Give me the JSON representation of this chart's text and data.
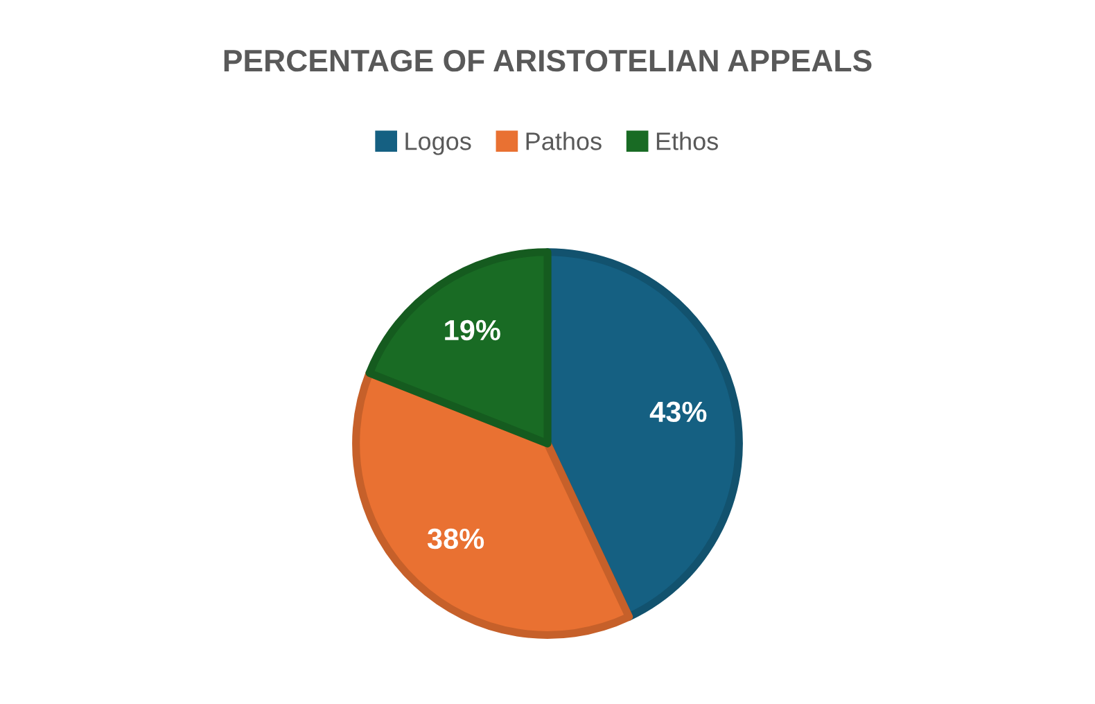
{
  "chart_data": {
    "type": "pie",
    "title": "PERCENTAGE OF ARISTOTELIAN APPEALS",
    "categories": [
      "Logos",
      "Pathos",
      "Ethos"
    ],
    "values": [
      43,
      38,
      19
    ],
    "colors": [
      "#156082",
      "#e97132",
      "#196b24"
    ],
    "value_labels": [
      "43%",
      "38%",
      "19%"
    ],
    "legend": "top"
  }
}
